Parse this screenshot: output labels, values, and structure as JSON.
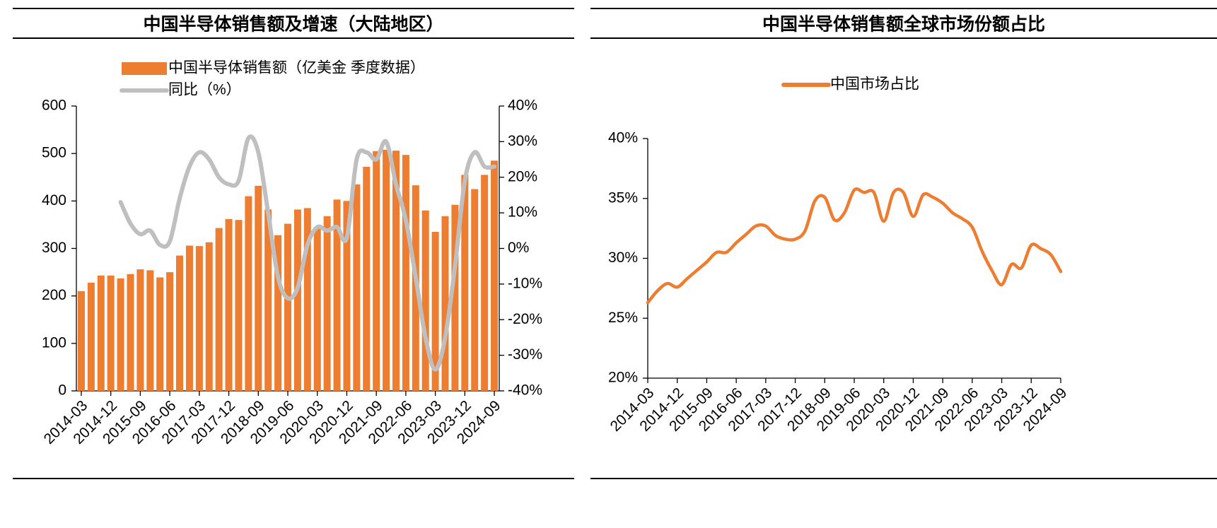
{
  "chart_data": [
    {
      "type": "bar",
      "title": "中国半导体销售额及增速（大陆地区）",
      "categories": [
        "2014-03",
        null,
        null,
        "2014-12",
        null,
        null,
        "2015-09",
        null,
        null,
        "2016-06",
        null,
        null,
        "2017-03",
        null,
        null,
        "2017-12",
        null,
        null,
        "2018-09",
        null,
        null,
        "2019-06",
        null,
        null,
        "2020-03",
        null,
        null,
        "2020-12",
        null,
        null,
        "2021-09",
        null,
        null,
        "2022-06",
        null,
        null,
        "2023-03",
        null,
        null,
        "2023-12",
        null,
        null,
        "2024-09"
      ],
      "series": [
        {
          "name": "中国半导体销售额（亿美金 季度数据）",
          "type": "bar",
          "color": "#ed7d31",
          "values": [
            210,
            228,
            243,
            243,
            237,
            246,
            256,
            254,
            239,
            250,
            285,
            306,
            305,
            313,
            343,
            362,
            360,
            410,
            432,
            382,
            328,
            352,
            382,
            385,
            345,
            368,
            403,
            400,
            435,
            472,
            505,
            508,
            506,
            497,
            433,
            380,
            335,
            368,
            392,
            455,
            425,
            455,
            485
          ]
        },
        {
          "name": "同比（%）",
          "type": "line",
          "axis": "y2",
          "color": "#bfbfbf",
          "values": [
            null,
            null,
            null,
            null,
            13,
            7,
            4,
            5,
            1,
            2,
            14,
            23,
            27,
            25,
            20,
            18,
            19,
            31,
            27,
            10,
            -8,
            -14,
            -11,
            1,
            6,
            5,
            6,
            3,
            25,
            27,
            25,
            30,
            18,
            8,
            -8,
            -25,
            -34,
            -25,
            -5,
            19,
            27,
            23,
            23
          ]
        }
      ],
      "ylim": [
        0,
        600
      ],
      "yticks": [
        0,
        100,
        200,
        300,
        400,
        500,
        600
      ],
      "y2lim": [
        -40,
        40
      ],
      "y2ticks": [
        {
          "value": -40,
          "label": "-40%"
        },
        {
          "value": -30,
          "label": "-30%"
        },
        {
          "value": -20,
          "label": "-20%"
        },
        {
          "value": -10,
          "label": "-10%"
        },
        {
          "value": 0,
          "label": "0%"
        },
        {
          "value": 10,
          "label": "10%"
        },
        {
          "value": 20,
          "label": "20%"
        },
        {
          "value": 30,
          "label": "30%"
        },
        {
          "value": 40,
          "label": "40%"
        }
      ]
    },
    {
      "type": "line",
      "title": "中国半导体销售额全球市场份额占比",
      "categories": [
        "2014-03",
        null,
        null,
        "2014-12",
        null,
        null,
        "2015-09",
        null,
        null,
        "2016-06",
        null,
        null,
        "2017-03",
        null,
        null,
        "2017-12",
        null,
        null,
        "2018-09",
        null,
        null,
        "2019-06",
        null,
        null,
        "2020-03",
        null,
        null,
        "2020-12",
        null,
        null,
        "2021-09",
        null,
        null,
        "2022-06",
        null,
        null,
        "2023-03",
        null,
        null,
        "2023-12",
        null,
        null,
        "2024-09"
      ],
      "series": [
        {
          "name": "中国市场占比",
          "type": "line",
          "color": "#ed7d31",
          "values": [
            26.3,
            27.3,
            27.9,
            27.6,
            28.3,
            29.0,
            29.7,
            30.5,
            30.5,
            31.3,
            32.0,
            32.7,
            32.7,
            31.9,
            31.6,
            31.6,
            32.3,
            34.8,
            35.1,
            33.2,
            33.8,
            35.7,
            35.5,
            35.5,
            33.1,
            35.5,
            35.5,
            33.5,
            35.3,
            35.1,
            34.6,
            33.8,
            33.3,
            32.6,
            30.6,
            29.0,
            27.8,
            29.5,
            29.2,
            31.1,
            30.8,
            30.3,
            28.9
          ]
        }
      ],
      "ylim": [
        20,
        40
      ],
      "yticks": [
        {
          "value": 20,
          "label": "20%"
        },
        {
          "value": 25,
          "label": "25%"
        },
        {
          "value": 30,
          "label": "30%"
        },
        {
          "value": 35,
          "label": "35%"
        },
        {
          "value": 40,
          "label": "40%"
        }
      ]
    }
  ]
}
